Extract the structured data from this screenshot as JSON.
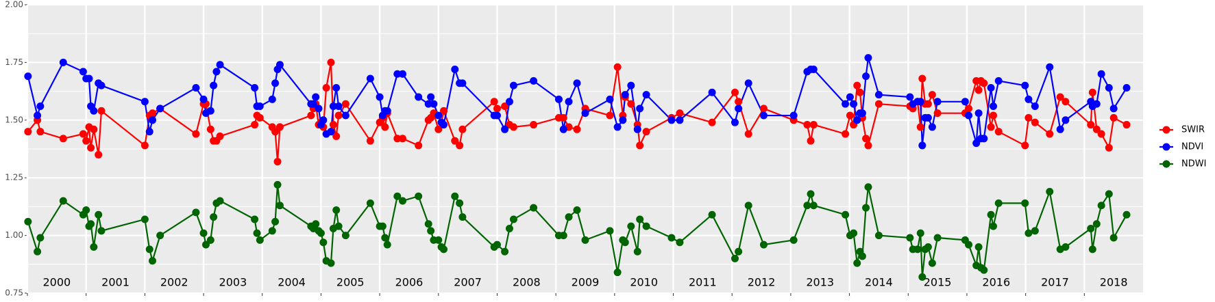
{
  "chart_data": {
    "type": "line",
    "x": [
      2000.01,
      2000.17,
      2000.22,
      2000.61,
      2000.95,
      2001.0,
      2001.05,
      2001.08,
      2001.13,
      2001.21,
      2001.26,
      2002.0,
      2002.08,
      2002.13,
      2002.26,
      2002.87,
      2003.0,
      2003.04,
      2003.12,
      2003.17,
      2003.22,
      2003.28,
      2003.87,
      2003.91,
      2003.96,
      2004.17,
      2004.22,
      2004.26,
      2004.3,
      2004.83,
      2004.87,
      2004.91,
      2004.96,
      2005.0,
      2005.04,
      2005.09,
      2005.17,
      2005.21,
      2005.26,
      2005.3,
      2005.42,
      2005.84,
      2006.0,
      2006.05,
      2006.09,
      2006.13,
      2006.3,
      2006.39,
      2006.66,
      2006.83,
      2006.87,
      2006.92,
      2007.0,
      2007.05,
      2007.09,
      2007.28,
      2007.36,
      2007.41,
      2007.95,
      2008.0,
      2008.13,
      2008.21,
      2008.28,
      2008.62,
      2009.05,
      2009.13,
      2009.22,
      2009.36,
      2009.5,
      2009.92,
      2010.05,
      2010.14,
      2010.18,
      2010.28,
      2010.39,
      2010.43,
      2010.54,
      2010.97,
      2011.11,
      2011.66,
      2012.05,
      2012.11,
      2012.28,
      2012.54,
      2013.05,
      2013.28,
      2013.34,
      2013.39,
      2013.93,
      2014.01,
      2014.07,
      2014.13,
      2014.18,
      2014.22,
      2014.28,
      2014.32,
      2014.5,
      2015.03,
      2015.08,
      2015.16,
      2015.21,
      2015.24,
      2015.29,
      2015.34,
      2015.41,
      2015.5,
      2015.97,
      2016.03,
      2016.16,
      2016.2,
      2016.24,
      2016.29,
      2016.41,
      2016.45,
      2016.54,
      2016.99,
      2017.05,
      2017.16,
      2017.41,
      2017.59,
      2017.68,
      2018.11,
      2018.14,
      2018.21,
      2018.29,
      2018.42,
      2018.5,
      2018.72
    ],
    "series": [
      {
        "name": "SWIR",
        "color": "#ff0000",
        "values": [
          1.45,
          1.5,
          1.45,
          1.42,
          1.44,
          1.41,
          1.47,
          1.38,
          1.46,
          1.35,
          1.54,
          1.39,
          1.52,
          1.53,
          1.55,
          1.44,
          1.57,
          1.57,
          1.46,
          1.41,
          1.41,
          1.43,
          1.48,
          1.52,
          1.51,
          1.47,
          1.45,
          1.32,
          1.47,
          1.52,
          1.55,
          1.57,
          1.48,
          1.49,
          1.47,
          1.64,
          1.75,
          1.48,
          1.43,
          1.52,
          1.57,
          1.41,
          1.49,
          1.51,
          1.47,
          1.53,
          1.42,
          1.42,
          1.39,
          1.5,
          1.51,
          1.53,
          1.46,
          1.49,
          1.54,
          1.41,
          1.39,
          1.46,
          1.58,
          1.55,
          1.56,
          1.48,
          1.47,
          1.48,
          1.51,
          1.51,
          1.47,
          1.46,
          1.55,
          1.52,
          1.73,
          1.52,
          1.6,
          1.57,
          1.48,
          1.39,
          1.45,
          1.51,
          1.53,
          1.49,
          1.62,
          1.58,
          1.44,
          1.55,
          1.5,
          1.48,
          1.41,
          1.48,
          1.44,
          1.52,
          1.48,
          1.65,
          1.62,
          1.51,
          1.42,
          1.39,
          1.57,
          1.56,
          1.55,
          1.58,
          1.47,
          1.68,
          1.57,
          1.57,
          1.61,
          1.53,
          1.53,
          1.55,
          1.67,
          1.63,
          1.67,
          1.66,
          1.47,
          1.52,
          1.45,
          1.39,
          1.51,
          1.49,
          1.44,
          1.6,
          1.58,
          1.48,
          1.62,
          1.46,
          1.44,
          1.38,
          1.51,
          1.48
        ]
      },
      {
        "name": "NDVI",
        "color": "#0000ff",
        "values": [
          1.69,
          1.52,
          1.56,
          1.75,
          1.71,
          1.68,
          1.68,
          1.56,
          1.54,
          1.66,
          1.65,
          1.58,
          1.45,
          1.5,
          1.55,
          1.64,
          1.59,
          1.53,
          1.54,
          1.65,
          1.71,
          1.74,
          1.64,
          1.56,
          1.56,
          1.59,
          1.66,
          1.72,
          1.74,
          1.57,
          1.57,
          1.6,
          1.55,
          1.48,
          1.5,
          1.44,
          1.45,
          1.56,
          1.64,
          1.56,
          1.52,
          1.68,
          1.6,
          1.52,
          1.54,
          1.54,
          1.7,
          1.7,
          1.6,
          1.57,
          1.6,
          1.57,
          1.52,
          1.49,
          1.48,
          1.72,
          1.66,
          1.66,
          1.52,
          1.52,
          1.46,
          1.58,
          1.65,
          1.67,
          1.59,
          1.46,
          1.58,
          1.66,
          1.53,
          1.59,
          1.47,
          1.5,
          1.61,
          1.65,
          1.46,
          1.55,
          1.61,
          1.5,
          1.5,
          1.62,
          1.49,
          1.55,
          1.66,
          1.52,
          1.52,
          1.71,
          1.72,
          1.72,
          1.57,
          1.6,
          1.57,
          1.5,
          1.53,
          1.53,
          1.69,
          1.77,
          1.61,
          1.6,
          1.57,
          1.58,
          1.58,
          1.39,
          1.51,
          1.51,
          1.47,
          1.58,
          1.58,
          1.52,
          1.4,
          1.53,
          1.42,
          1.42,
          1.64,
          1.56,
          1.67,
          1.65,
          1.59,
          1.56,
          1.73,
          1.46,
          1.5,
          1.58,
          1.56,
          1.57,
          1.7,
          1.64,
          1.55,
          1.64
        ]
      },
      {
        "name": "NDWI",
        "color": "#006400",
        "values": [
          1.06,
          0.93,
          0.99,
          1.15,
          1.09,
          1.11,
          1.04,
          1.05,
          0.95,
          1.09,
          1.02,
          1.07,
          0.94,
          0.89,
          1.0,
          1.1,
          1.01,
          0.96,
          0.98,
          1.08,
          1.14,
          1.15,
          1.07,
          1.01,
          0.98,
          1.02,
          1.06,
          1.22,
          1.13,
          1.04,
          1.03,
          1.05,
          1.02,
          1.01,
          0.97,
          0.89,
          0.88,
          1.03,
          1.11,
          1.04,
          1.0,
          1.14,
          1.04,
          1.04,
          0.99,
          0.96,
          1.17,
          1.15,
          1.17,
          1.05,
          1.02,
          0.98,
          0.98,
          0.95,
          0.94,
          1.17,
          1.14,
          1.08,
          0.95,
          0.96,
          0.93,
          1.03,
          1.07,
          1.12,
          1.0,
          1.0,
          1.08,
          1.11,
          0.98,
          1.02,
          0.84,
          0.98,
          0.97,
          1.04,
          0.93,
          1.07,
          1.04,
          0.99,
          0.97,
          1.09,
          0.9,
          0.93,
          1.13,
          0.96,
          0.98,
          1.13,
          1.18,
          1.13,
          1.09,
          1.0,
          1.01,
          0.88,
          0.93,
          0.91,
          1.12,
          1.21,
          1.0,
          0.99,
          0.94,
          0.94,
          1.01,
          0.82,
          0.94,
          0.95,
          0.88,
          0.99,
          0.98,
          0.96,
          0.87,
          0.95,
          0.86,
          0.85,
          1.09,
          1.04,
          1.14,
          1.14,
          1.01,
          1.02,
          1.19,
          0.94,
          0.95,
          1.03,
          0.94,
          1.05,
          1.13,
          1.18,
          0.99,
          1.09
        ]
      }
    ],
    "xlim": [
      2000,
      2019
    ],
    "xticks": [
      2000,
      2001,
      2002,
      2003,
      2004,
      2005,
      2006,
      2007,
      2008,
      2009,
      2010,
      2011,
      2012,
      2013,
      2014,
      2015,
      2016,
      2017,
      2018
    ],
    "ylim": [
      0.75,
      2.0
    ],
    "yticks": [
      0.75,
      {
        "value": 1,
        "label": "1.00"
      },
      1.25,
      {
        "value": 1.5,
        "label": "1.50"
      },
      1.75,
      {
        "value": 2,
        "label": "2.00"
      }
    ],
    "grid": true,
    "legend": "right"
  }
}
